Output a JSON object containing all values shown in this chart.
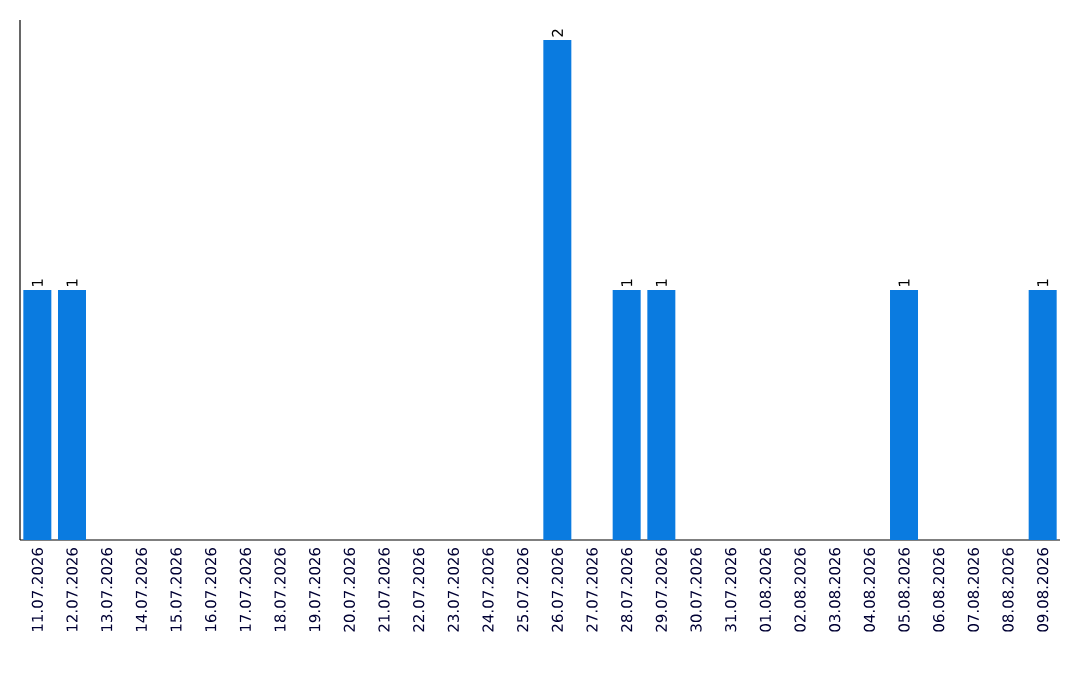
{
  "chart_data": {
    "type": "bar",
    "categories": [
      "11.07.2026",
      "12.07.2026",
      "13.07.2026",
      "14.07.2026",
      "15.07.2026",
      "16.07.2026",
      "17.07.2026",
      "18.07.2026",
      "19.07.2026",
      "20.07.2026",
      "21.07.2026",
      "22.07.2026",
      "23.07.2026",
      "24.07.2026",
      "25.07.2026",
      "26.07.2026",
      "27.07.2026",
      "28.07.2026",
      "29.07.2026",
      "30.07.2026",
      "31.07.2026",
      "01.08.2026",
      "02.08.2026",
      "03.08.2026",
      "04.08.2026",
      "05.08.2026",
      "06.08.2026",
      "07.08.2026",
      "08.08.2026",
      "09.08.2026"
    ],
    "values": [
      1,
      1,
      0,
      0,
      0,
      0,
      0,
      0,
      0,
      0,
      0,
      0,
      0,
      0,
      0,
      2,
      0,
      1,
      1,
      0,
      0,
      0,
      0,
      0,
      0,
      1,
      0,
      0,
      0,
      1
    ],
    "value_labels": [
      "1",
      "1",
      null,
      null,
      null,
      null,
      null,
      null,
      null,
      null,
      null,
      null,
      null,
      null,
      null,
      "2",
      null,
      "1",
      "1",
      null,
      null,
      null,
      null,
      null,
      null,
      "1",
      null,
      null,
      null,
      "1"
    ],
    "color": "#0a7be0"
  }
}
